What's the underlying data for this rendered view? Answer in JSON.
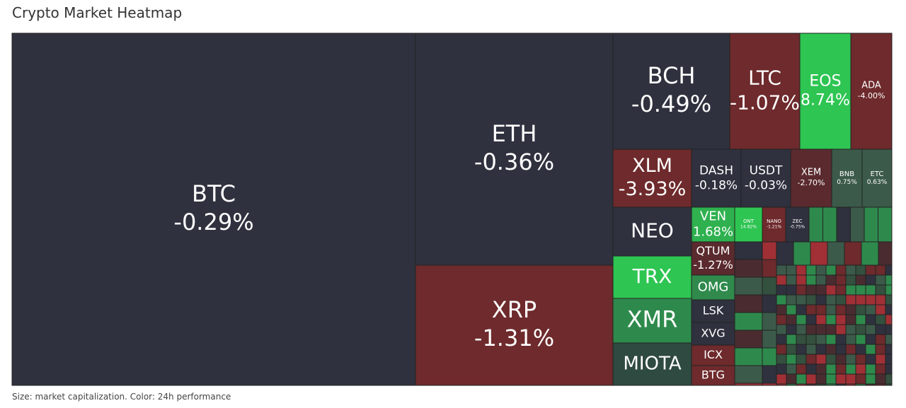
{
  "chart_data": {
    "type": "treemap",
    "title": "Crypto Market Heatmap",
    "note": "Size: market capitalization. Color: 24h performance",
    "categories": [
      "BTC",
      "ETH",
      "XRP",
      "BCH",
      "LTC",
      "EOS",
      "ADA",
      "XLM",
      "DASH",
      "USDT",
      "XEM",
      "BNB",
      "ETC",
      "NEO",
      "TRX",
      "XMR",
      "MIOTA",
      "VEN",
      "QTUM",
      "OMG",
      "LSK",
      "XVG",
      "ICX",
      "BTG",
      "ONT",
      "NANO",
      "ZEC"
    ],
    "values": [
      -0.29,
      -0.36,
      -1.31,
      -0.49,
      -1.07,
      8.74,
      -4.0,
      -3.93,
      -0.18,
      -0.03,
      -2.7,
      0.75,
      0.63,
      null,
      null,
      null,
      null,
      1.68,
      -1.27,
      null,
      null,
      null,
      null,
      null,
      14.82,
      -1.21,
      -0.75
    ],
    "value_labels": [
      "-0.29%",
      "-0.36%",
      "-1.31%",
      "-0.49%",
      "-1.07%",
      "8.74%",
      "-4.00%",
      "-3.93%",
      "-0.18%",
      "-0.03%",
      "-2.70%",
      "0.75%",
      "0.63%",
      null,
      null,
      null,
      null,
      "1.68%",
      "-1.27%",
      null,
      null,
      null,
      null,
      null,
      "14.82%",
      "-1.21%",
      "-0.75%"
    ],
    "colors": [
      "#2f313e",
      "#2f313e",
      "#6e2a2c",
      "#2f313e",
      "#6e2a2c",
      "#2ec552",
      "#6e2a2c",
      "#6e2a2c",
      "#2f313e",
      "#2f313e",
      "#5a2a2e",
      "#3c5a4a",
      "#3c5a4a",
      "#2f313e",
      "#2ec552",
      "#2e8a4c",
      "#2f4a40",
      "#2fb14f",
      "#5a2a2e",
      "#2f8a4c",
      "#2f313e",
      "#2f313e",
      "#6e2a2c",
      "#6e2a2c",
      "#2ec552",
      "#6e2a2c",
      "#2f313e"
    ]
  }
}
